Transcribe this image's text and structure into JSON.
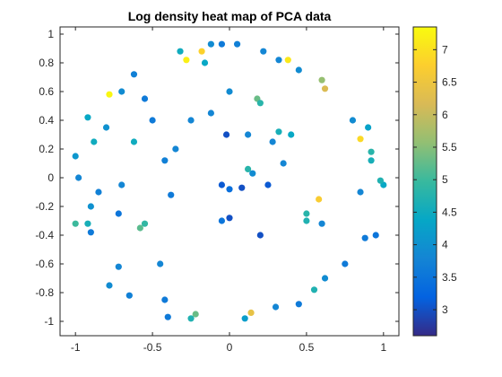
{
  "chart_data": {
    "type": "scatter",
    "title": "Log density heat map of PCA data",
    "xlabel": "",
    "ylabel": "",
    "xlim": [
      -1.1,
      1.1
    ],
    "ylim": [
      -1.1,
      1.05
    ],
    "xticks": [
      -1,
      -0.5,
      0,
      0.5,
      1
    ],
    "xtick_labels": [
      "-1",
      "-0.5",
      "0",
      "0.5",
      "1"
    ],
    "yticks": [
      -1,
      -0.8,
      -0.6,
      -0.4,
      -0.2,
      0,
      0.2,
      0.4,
      0.6,
      0.8,
      1
    ],
    "ytick_labels": [
      "-1",
      "-0.8",
      "-0.6",
      "-0.4",
      "-0.2",
      "0",
      "0.2",
      "0.4",
      "0.6",
      "0.8",
      "1"
    ],
    "grid": false,
    "colormap": "parula",
    "colormap_stops": [
      "#352a87",
      "#0363e1",
      "#1485d4",
      "#06a7c6",
      "#38b99e",
      "#92bf73",
      "#d9ba56",
      "#fcce2e",
      "#f9fb0e"
    ],
    "colorbar": {
      "position": "right",
      "limits": [
        2.6,
        7.35
      ],
      "ticks": [
        3,
        3.5,
        4,
        4.5,
        5,
        5.5,
        6,
        6.5,
        7
      ],
      "tick_labels": [
        "3",
        "3.5",
        "4",
        "4.5",
        "5",
        "5.5",
        "6",
        "6.5",
        "7"
      ]
    },
    "points": [
      {
        "x": -0.12,
        "y": 0.93,
        "c": 3.9
      },
      {
        "x": -0.05,
        "y": 0.93,
        "c": 3.6
      },
      {
        "x": 0.05,
        "y": 0.93,
        "c": 3.7
      },
      {
        "x": -0.32,
        "y": 0.88,
        "c": 4.5
      },
      {
        "x": -0.18,
        "y": 0.88,
        "c": 6.8
      },
      {
        "x": -0.28,
        "y": 0.82,
        "c": 7.2
      },
      {
        "x": -0.16,
        "y": 0.8,
        "c": 4.4
      },
      {
        "x": 0.22,
        "y": 0.88,
        "c": 3.8
      },
      {
        "x": 0.32,
        "y": 0.82,
        "c": 3.8
      },
      {
        "x": 0.38,
        "y": 0.82,
        "c": 7.1
      },
      {
        "x": 0.45,
        "y": 0.75,
        "c": 3.9
      },
      {
        "x": 0.6,
        "y": 0.68,
        "c": 5.6
      },
      {
        "x": 0.62,
        "y": 0.62,
        "c": 6.2
      },
      {
        "x": -0.62,
        "y": 0.72,
        "c": 3.7
      },
      {
        "x": -0.78,
        "y": 0.58,
        "c": 7.3
      },
      {
        "x": -0.7,
        "y": 0.6,
        "c": 3.9
      },
      {
        "x": -0.55,
        "y": 0.55,
        "c": 3.6
      },
      {
        "x": -0.92,
        "y": 0.42,
        "c": 4.4
      },
      {
        "x": -0.88,
        "y": 0.25,
        "c": 4.5
      },
      {
        "x": -1.0,
        "y": 0.15,
        "c": 4.1
      },
      {
        "x": -0.98,
        "y": 0.0,
        "c": 3.8
      },
      {
        "x": -1.0,
        "y": -0.32,
        "c": 5.0
      },
      {
        "x": -0.92,
        "y": -0.32,
        "c": 4.6
      },
      {
        "x": -0.9,
        "y": -0.38,
        "c": 3.6
      },
      {
        "x": -0.58,
        "y": -0.35,
        "c": 5.2
      },
      {
        "x": -0.55,
        "y": -0.32,
        "c": 4.9
      },
      {
        "x": -0.45,
        "y": -0.6,
        "c": 3.8
      },
      {
        "x": -0.72,
        "y": -0.62,
        "c": 3.8
      },
      {
        "x": -0.78,
        "y": -0.75,
        "c": 3.9
      },
      {
        "x": -0.65,
        "y": -0.82,
        "c": 3.7
      },
      {
        "x": -0.42,
        "y": -0.85,
        "c": 3.6
      },
      {
        "x": -0.22,
        "y": -0.95,
        "c": 5.3
      },
      {
        "x": -0.25,
        "y": -0.98,
        "c": 4.7
      },
      {
        "x": -0.4,
        "y": -0.97,
        "c": 3.6
      },
      {
        "x": 0.14,
        "y": -0.94,
        "c": 6.4
      },
      {
        "x": 0.1,
        "y": -0.98,
        "c": 4.2
      },
      {
        "x": 0.3,
        "y": -0.9,
        "c": 3.8
      },
      {
        "x": 0.45,
        "y": -0.88,
        "c": 3.6
      },
      {
        "x": 0.55,
        "y": -0.78,
        "c": 4.7
      },
      {
        "x": 0.62,
        "y": -0.7,
        "c": 3.9
      },
      {
        "x": 0.75,
        "y": -0.6,
        "c": 3.6
      },
      {
        "x": 0.88,
        "y": -0.42,
        "c": 3.6
      },
      {
        "x": 0.95,
        "y": -0.4,
        "c": 3.5
      },
      {
        "x": 1.0,
        "y": -0.05,
        "c": 4.4
      },
      {
        "x": 0.85,
        "y": -0.1,
        "c": 3.8
      },
      {
        "x": 0.98,
        "y": -0.02,
        "c": 4.7
      },
      {
        "x": 0.92,
        "y": 0.12,
        "c": 4.6
      },
      {
        "x": 0.92,
        "y": 0.18,
        "c": 4.8
      },
      {
        "x": 0.85,
        "y": 0.27,
        "c": 6.9
      },
      {
        "x": 0.9,
        "y": 0.35,
        "c": 4.3
      },
      {
        "x": 0.8,
        "y": 0.4,
        "c": 3.9
      },
      {
        "x": 0.58,
        "y": -0.15,
        "c": 6.7
      },
      {
        "x": 0.5,
        "y": -0.25,
        "c": 4.8
      },
      {
        "x": 0.5,
        "y": -0.3,
        "c": 4.7
      },
      {
        "x": 0.6,
        "y": -0.32,
        "c": 3.8
      },
      {
        "x": 0.4,
        "y": 0.3,
        "c": 4.4
      },
      {
        "x": 0.32,
        "y": 0.32,
        "c": 4.6
      },
      {
        "x": 0.28,
        "y": 0.25,
        "c": 3.8
      },
      {
        "x": 0.35,
        "y": 0.1,
        "c": 3.8
      },
      {
        "x": 0.18,
        "y": 0.55,
        "c": 5.3
      },
      {
        "x": 0.2,
        "y": 0.52,
        "c": 4.8
      },
      {
        "x": 0.12,
        "y": 0.3,
        "c": 3.8
      },
      {
        "x": 0.12,
        "y": 0.06,
        "c": 4.8
      },
      {
        "x": 0.15,
        "y": 0.03,
        "c": 3.9
      },
      {
        "x": 0.25,
        "y": -0.05,
        "c": 3.1
      },
      {
        "x": 0.08,
        "y": -0.07,
        "c": 3.0
      },
      {
        "x": -0.02,
        "y": 0.3,
        "c": 3.0
      },
      {
        "x": -0.05,
        "y": -0.05,
        "c": 3.1
      },
      {
        "x": 0.0,
        "y": -0.08,
        "c": 3.4
      },
      {
        "x": 0.0,
        "y": -0.28,
        "c": 3.0
      },
      {
        "x": -0.05,
        "y": -0.3,
        "c": 3.5
      },
      {
        "x": 0.2,
        "y": -0.4,
        "c": 3.0
      },
      {
        "x": 0.0,
        "y": 0.6,
        "c": 3.9
      },
      {
        "x": -0.12,
        "y": 0.45,
        "c": 3.8
      },
      {
        "x": -0.25,
        "y": 0.4,
        "c": 3.8
      },
      {
        "x": -0.35,
        "y": 0.2,
        "c": 3.8
      },
      {
        "x": -0.42,
        "y": 0.12,
        "c": 3.7
      },
      {
        "x": -0.38,
        "y": -0.12,
        "c": 3.6
      },
      {
        "x": -0.7,
        "y": -0.05,
        "c": 3.8
      },
      {
        "x": -0.72,
        "y": -0.25,
        "c": 3.5
      },
      {
        "x": -0.85,
        "y": -0.1,
        "c": 3.7
      },
      {
        "x": -0.9,
        "y": -0.2,
        "c": 4.0
      },
      {
        "x": -0.62,
        "y": 0.25,
        "c": 4.5
      },
      {
        "x": -0.5,
        "y": 0.4,
        "c": 3.6
      },
      {
        "x": -0.8,
        "y": 0.35,
        "c": 4.0
      }
    ]
  }
}
